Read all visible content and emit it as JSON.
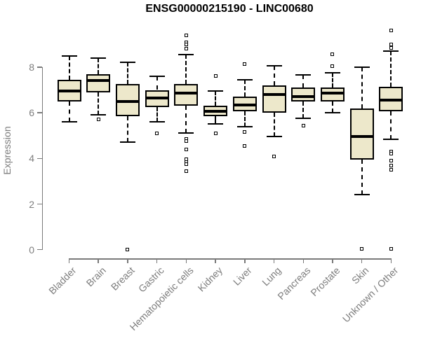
{
  "chart_data": {
    "type": "boxplot",
    "title": "ENSG00000215190 - LINC00680",
    "xlabel": "",
    "ylabel": "Expression",
    "yticks": [
      0,
      2,
      4,
      6,
      8
    ],
    "ylim": [
      0,
      9.8
    ],
    "grid": false,
    "categories": [
      "Bladder",
      "Brain",
      "Breast",
      "Gastric",
      "Hematopoietic cells",
      "Kidney",
      "Liver",
      "Lung",
      "Pancreas",
      "Prostate",
      "Skin",
      "Unknown / Other"
    ],
    "boxes": [
      {
        "category": "Bladder",
        "whisker_low": 5.6,
        "q1": 6.5,
        "median": 6.95,
        "q3": 7.45,
        "whisker_high": 8.5,
        "outliers": []
      },
      {
        "category": "Brain",
        "whisker_low": 5.9,
        "q1": 6.9,
        "median": 7.4,
        "q3": 7.7,
        "whisker_high": 8.4,
        "outliers": [
          5.7
        ]
      },
      {
        "category": "Breast",
        "whisker_low": 4.7,
        "q1": 5.85,
        "median": 6.5,
        "q3": 7.25,
        "whisker_high": 8.2,
        "outliers": [
          0.0
        ]
      },
      {
        "category": "Gastric",
        "whisker_low": 5.6,
        "q1": 6.25,
        "median": 6.65,
        "q3": 7.0,
        "whisker_high": 7.6,
        "outliers": [
          5.1
        ]
      },
      {
        "category": "Hematopoietic cells",
        "whisker_low": 5.1,
        "q1": 6.3,
        "median": 6.85,
        "q3": 7.25,
        "whisker_high": 8.55,
        "outliers": [
          9.4,
          9.1,
          9.0,
          8.8,
          4.85,
          4.75,
          4.4,
          3.95,
          3.85,
          3.75,
          3.45
        ]
      },
      {
        "category": "Kidney",
        "whisker_low": 5.5,
        "q1": 5.85,
        "median": 6.05,
        "q3": 6.3,
        "whisker_high": 6.95,
        "outliers": [
          7.6,
          5.1
        ]
      },
      {
        "category": "Liver",
        "whisker_low": 5.4,
        "q1": 6.05,
        "median": 6.35,
        "q3": 6.7,
        "whisker_high": 7.45,
        "outliers": [
          8.15,
          5.15,
          4.55
        ]
      },
      {
        "category": "Lung",
        "whisker_low": 4.95,
        "q1": 6.0,
        "median": 6.8,
        "q3": 7.2,
        "whisker_high": 8.05,
        "outliers": [
          4.1
        ]
      },
      {
        "category": "Pancreas",
        "whisker_low": 5.75,
        "q1": 6.5,
        "median": 6.7,
        "q3": 7.1,
        "whisker_high": 7.65,
        "outliers": [
          5.45
        ]
      },
      {
        "category": "Prostate",
        "whisker_low": 6.0,
        "q1": 6.5,
        "median": 6.85,
        "q3": 7.1,
        "whisker_high": 7.75,
        "outliers": [
          8.55,
          8.05
        ]
      },
      {
        "category": "Skin",
        "whisker_low": 2.4,
        "q1": 3.95,
        "median": 4.95,
        "q3": 6.2,
        "whisker_high": 8.0,
        "outliers": [
          0.05
        ]
      },
      {
        "category": "Unknown / Other",
        "whisker_low": 4.85,
        "q1": 6.05,
        "median": 6.55,
        "q3": 7.15,
        "whisker_high": 8.7,
        "outliers": [
          9.6,
          9.0,
          8.85,
          4.3,
          4.2,
          3.9,
          3.7,
          3.5,
          0.05
        ]
      }
    ],
    "style": {
      "box_fill": "#EDE8CB",
      "box_stroke": "#000000",
      "axis_color": "#7A7A7A",
      "label_color": "#7D7D7D",
      "background": "#FFFFFF"
    }
  }
}
